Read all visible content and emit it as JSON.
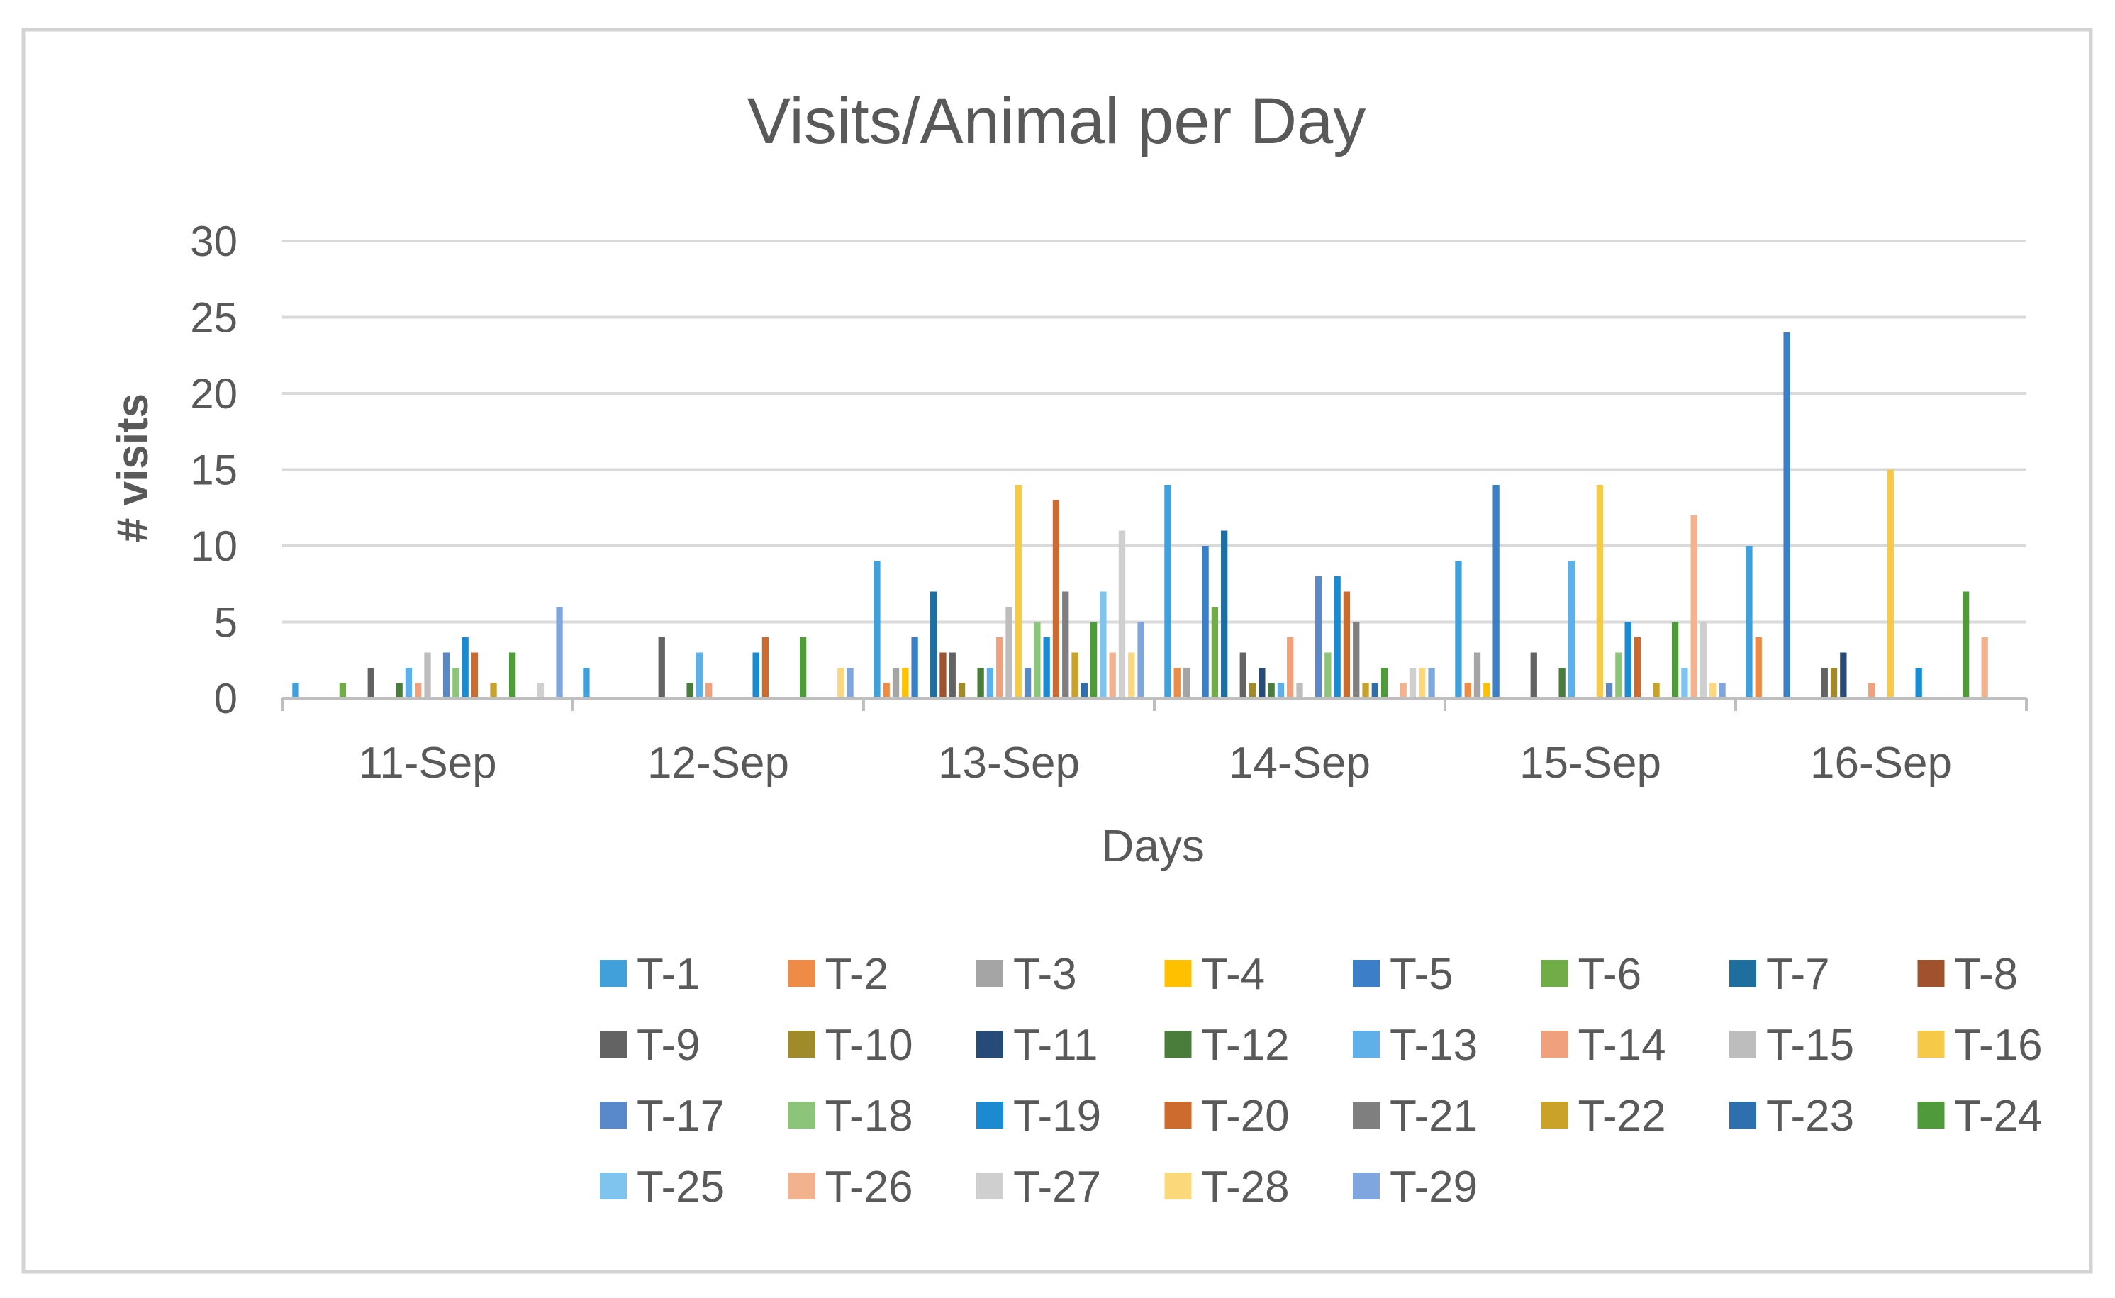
{
  "chart_data": {
    "type": "bar",
    "title": "Visits/Animal per Day",
    "xlabel": "Days",
    "ylabel": "# visits",
    "ylim": [
      0,
      30
    ],
    "yticks": [
      0,
      5,
      10,
      15,
      20,
      25,
      30
    ],
    "grid": true,
    "legend_position": "bottom",
    "categories": [
      "11-Sep",
      "12-Sep",
      "13-Sep",
      "14-Sep",
      "15-Sep",
      "16-Sep"
    ],
    "series": [
      {
        "name": "T-1",
        "color": "#41A0D9",
        "values": [
          1,
          2,
          9,
          14,
          9,
          10
        ]
      },
      {
        "name": "T-2",
        "color": "#ED8B47",
        "values": [
          0,
          0,
          1,
          2,
          1,
          4
        ]
      },
      {
        "name": "T-3",
        "color": "#A5A5A5",
        "values": [
          0,
          0,
          2,
          2,
          3,
          0
        ]
      },
      {
        "name": "T-4",
        "color": "#FFC000",
        "values": [
          0,
          0,
          2,
          0,
          1,
          0
        ]
      },
      {
        "name": "T-5",
        "color": "#3B7FC9",
        "values": [
          0,
          0,
          4,
          10,
          14,
          24
        ]
      },
      {
        "name": "T-6",
        "color": "#70AD47",
        "values": [
          1,
          0,
          0,
          6,
          0,
          0
        ]
      },
      {
        "name": "T-7",
        "color": "#1F6EA0",
        "values": [
          0,
          0,
          7,
          11,
          0,
          0
        ]
      },
      {
        "name": "T-8",
        "color": "#A0522D",
        "values": [
          0,
          0,
          3,
          0,
          0,
          0
        ]
      },
      {
        "name": "T-9",
        "color": "#636363",
        "values": [
          2,
          4,
          3,
          3,
          3,
          2
        ]
      },
      {
        "name": "T-10",
        "color": "#A18A2A",
        "values": [
          0,
          0,
          1,
          1,
          0,
          2
        ]
      },
      {
        "name": "T-11",
        "color": "#264B78",
        "values": [
          0,
          0,
          0,
          2,
          0,
          3
        ]
      },
      {
        "name": "T-12",
        "color": "#4A7C3B",
        "values": [
          1,
          1,
          2,
          1,
          2,
          0
        ]
      },
      {
        "name": "T-13",
        "color": "#5FB0E8",
        "values": [
          2,
          3,
          2,
          1,
          9,
          0
        ]
      },
      {
        "name": "T-14",
        "color": "#F0A07A",
        "values": [
          1,
          1,
          4,
          4,
          0,
          1
        ]
      },
      {
        "name": "T-15",
        "color": "#BDBDBD",
        "values": [
          3,
          0,
          6,
          1,
          0,
          0
        ]
      },
      {
        "name": "T-16",
        "color": "#F7C948",
        "values": [
          0,
          0,
          14,
          0,
          14,
          15
        ]
      },
      {
        "name": "T-17",
        "color": "#5A89C9",
        "values": [
          3,
          0,
          2,
          8,
          1,
          0
        ]
      },
      {
        "name": "T-18",
        "color": "#8CC47A",
        "values": [
          2,
          0,
          5,
          3,
          3,
          0
        ]
      },
      {
        "name": "T-19",
        "color": "#1C8AD1",
        "values": [
          4,
          3,
          4,
          8,
          5,
          2
        ]
      },
      {
        "name": "T-20",
        "color": "#CD6A2E",
        "values": [
          3,
          4,
          13,
          7,
          4,
          0
        ]
      },
      {
        "name": "T-21",
        "color": "#7F7F7F",
        "values": [
          0,
          0,
          7,
          5,
          0,
          0
        ]
      },
      {
        "name": "T-22",
        "color": "#C9A227",
        "values": [
          1,
          0,
          3,
          1,
          1,
          0
        ]
      },
      {
        "name": "T-23",
        "color": "#2E6FB0",
        "values": [
          0,
          0,
          1,
          1,
          0,
          0
        ]
      },
      {
        "name": "T-24",
        "color": "#4F9A3A",
        "values": [
          3,
          4,
          5,
          2,
          5,
          7
        ]
      },
      {
        "name": "T-25",
        "color": "#7FC4EE",
        "values": [
          0,
          0,
          7,
          0,
          2,
          0
        ]
      },
      {
        "name": "T-26",
        "color": "#F2B28E",
        "values": [
          0,
          0,
          3,
          1,
          12,
          4
        ]
      },
      {
        "name": "T-27",
        "color": "#CFCFCF",
        "values": [
          1,
          0,
          11,
          2,
          5,
          0
        ]
      },
      {
        "name": "T-28",
        "color": "#FBD879",
        "values": [
          0,
          2,
          3,
          2,
          1,
          0
        ]
      },
      {
        "name": "T-29",
        "color": "#7FA6DE",
        "values": [
          6,
          2,
          5,
          2,
          1,
          0
        ]
      }
    ]
  }
}
